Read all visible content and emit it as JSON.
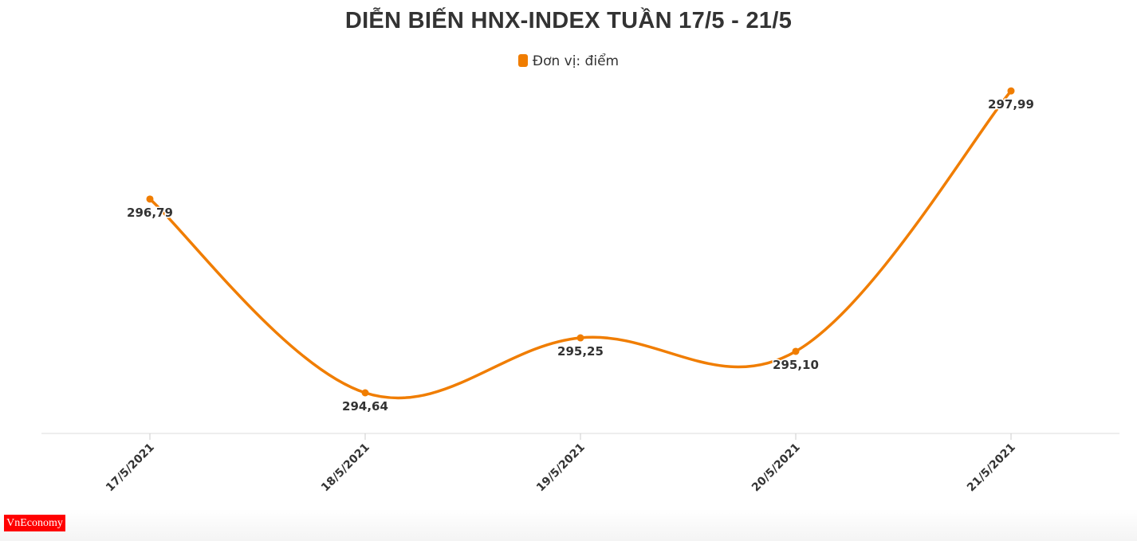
{
  "chart_data": {
    "type": "line",
    "title": "DIỄN BIẾN HNX-INDEX TUẦN 17/5 - 21/5",
    "legend": [
      "Đơn vị: điểm"
    ],
    "legend_placement": "top",
    "categories": [
      "17/5/2021",
      "18/5/2021",
      "19/5/2021",
      "20/5/2021",
      "21/5/2021"
    ],
    "series": [
      {
        "name": "Đơn vị: điểm",
        "values": [
          296.79,
          294.64,
          295.25,
          295.1,
          297.99
        ],
        "labels": [
          "296,79",
          "294,64",
          "295,25",
          "295,10",
          "297,99"
        ],
        "color": "#f07d00"
      }
    ],
    "grid": false,
    "smooth": true
  },
  "logo": {
    "text": "VnEconomy",
    "color": "#ff0000"
  }
}
